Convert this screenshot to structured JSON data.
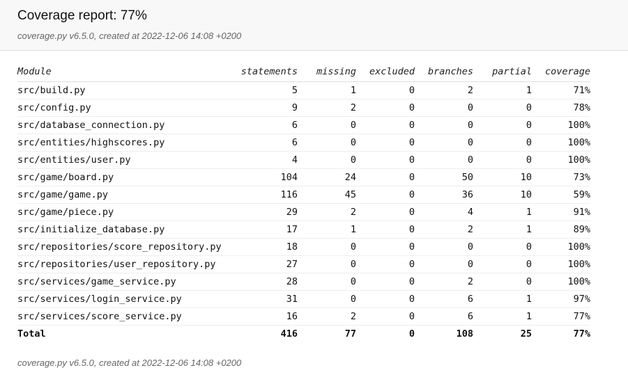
{
  "header": {
    "title": "Coverage report: 77%",
    "meta": "coverage.py v6.5.0, created at 2022-12-06 14:08 +0200"
  },
  "table": {
    "columns": [
      "Module",
      "statements",
      "missing",
      "excluded",
      "branches",
      "partial",
      "coverage"
    ],
    "rows": [
      [
        "src/build.py",
        "5",
        "1",
        "0",
        "2",
        "1",
        "71%"
      ],
      [
        "src/config.py",
        "9",
        "2",
        "0",
        "0",
        "0",
        "78%"
      ],
      [
        "src/database_connection.py",
        "6",
        "0",
        "0",
        "0",
        "0",
        "100%"
      ],
      [
        "src/entities/highscores.py",
        "6",
        "0",
        "0",
        "0",
        "0",
        "100%"
      ],
      [
        "src/entities/user.py",
        "4",
        "0",
        "0",
        "0",
        "0",
        "100%"
      ],
      [
        "src/game/board.py",
        "104",
        "24",
        "0",
        "50",
        "10",
        "73%"
      ],
      [
        "src/game/game.py",
        "116",
        "45",
        "0",
        "36",
        "10",
        "59%"
      ],
      [
        "src/game/piece.py",
        "29",
        "2",
        "0",
        "4",
        "1",
        "91%"
      ],
      [
        "src/initialize_database.py",
        "17",
        "1",
        "0",
        "2",
        "1",
        "89%"
      ],
      [
        "src/repositories/score_repository.py",
        "18",
        "0",
        "0",
        "0",
        "0",
        "100%"
      ],
      [
        "src/repositories/user_repository.py",
        "27",
        "0",
        "0",
        "0",
        "0",
        "100%"
      ],
      [
        "src/services/game_service.py",
        "28",
        "0",
        "0",
        "2",
        "0",
        "100%"
      ],
      [
        "src/services/login_service.py",
        "31",
        "0",
        "0",
        "6",
        "1",
        "97%"
      ],
      [
        "src/services/score_service.py",
        "16",
        "2",
        "0",
        "6",
        "1",
        "77%"
      ]
    ],
    "total": [
      "Total",
      "416",
      "77",
      "0",
      "108",
      "25",
      "77%"
    ]
  },
  "footer": {
    "meta": "coverage.py v6.5.0, created at 2022-12-06 14:08 +0200"
  }
}
